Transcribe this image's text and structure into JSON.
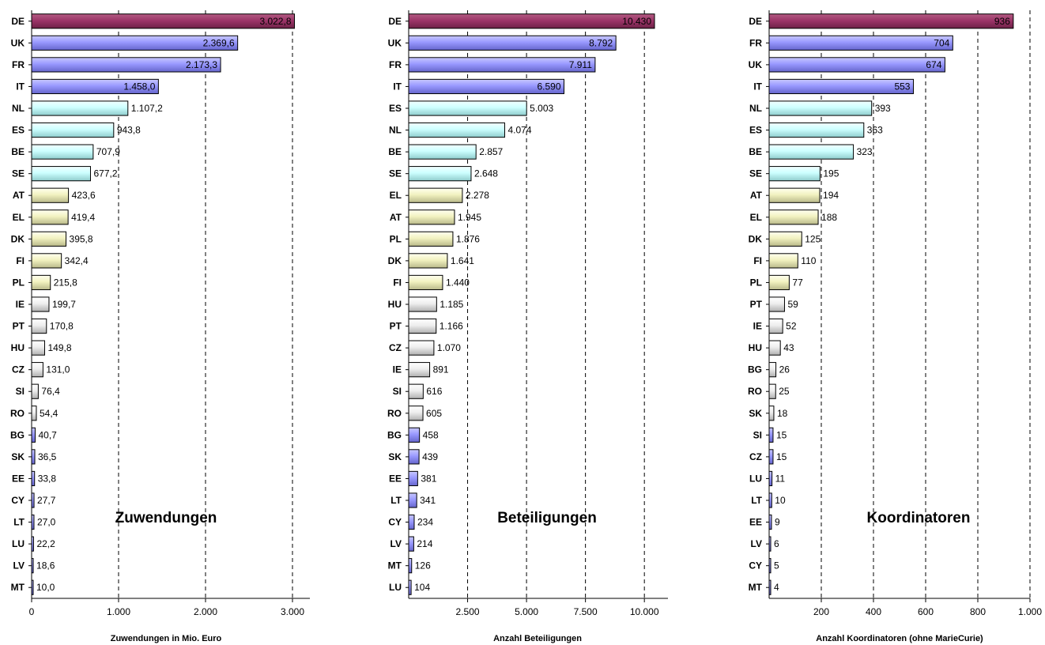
{
  "colors": {
    "top": "#993366",
    "major": "#9999ff",
    "mid": "#ccffff",
    "lower": "#ffffcc",
    "small": "#ffffff",
    "minor": "#9999ff",
    "edge": "#000000"
  },
  "chart_data": [
    {
      "type": "bar",
      "orientation": "horizontal",
      "overlay_label": "Zuwendungen",
      "xlabel": "Zuwendungen in Mio. Euro",
      "xlim": [
        0,
        3200
      ],
      "xticks": [
        0,
        1000,
        2000,
        3000
      ],
      "xtick_labels": [
        "0",
        "1.000",
        "2.000",
        "3.000"
      ],
      "grid": "vertical dashed",
      "categories": [
        "DE",
        "UK",
        "FR",
        "IT",
        "NL",
        "ES",
        "BE",
        "SE",
        "AT",
        "EL",
        "DK",
        "FI",
        "PL",
        "IE",
        "PT",
        "HU",
        "CZ",
        "SI",
        "RO",
        "BG",
        "SK",
        "EE",
        "CY",
        "LT",
        "LU",
        "LV",
        "MT"
      ],
      "values": [
        3022.8,
        2369.6,
        2173.3,
        1458.0,
        1107.2,
        943.8,
        707.9,
        677.2,
        423.6,
        419.4,
        395.8,
        342.4,
        215.8,
        199.7,
        170.8,
        149.8,
        131.0,
        76.4,
        54.4,
        40.7,
        36.5,
        33.8,
        27.7,
        27.0,
        22.2,
        18.6,
        10.0
      ],
      "value_labels": [
        "3.022,8",
        "2.369,6",
        "2.173,3",
        "1.458,0",
        "1.107,2",
        "943,8",
        "707,9",
        "677,2",
        "423,6",
        "419,4",
        "395,8",
        "342,4",
        "215,8",
        "199,7",
        "170,8",
        "149,8",
        "131,0",
        "76,4",
        "54,4",
        "40,7",
        "36,5",
        "33,8",
        "27,7",
        "27,0",
        "22,2",
        "18,6",
        "10,0"
      ],
      "groups": [
        "top",
        "major",
        "major",
        "major",
        "mid",
        "mid",
        "mid",
        "mid",
        "lower",
        "lower",
        "lower",
        "lower",
        "lower",
        "small",
        "small",
        "small",
        "small",
        "small",
        "small",
        "minor",
        "minor",
        "minor",
        "minor",
        "minor",
        "minor",
        "minor",
        "minor"
      ]
    },
    {
      "type": "bar",
      "orientation": "horizontal",
      "overlay_label": "Beteiligungen",
      "xlabel": "Anzahl Beteiligungen",
      "xlim": [
        0,
        11000
      ],
      "xticks": [
        2500,
        5000,
        7500,
        10000
      ],
      "xtick_labels": [
        "2.500",
        "5.000",
        "7.500",
        "10.000"
      ],
      "grid": "vertical dashed",
      "categories": [
        "DE",
        "UK",
        "FR",
        "IT",
        "ES",
        "NL",
        "BE",
        "SE",
        "EL",
        "AT",
        "PL",
        "DK",
        "FI",
        "HU",
        "PT",
        "CZ",
        "IE",
        "SI",
        "RO",
        "BG",
        "SK",
        "EE",
        "LT",
        "CY",
        "LV",
        "MT",
        "LU"
      ],
      "values": [
        10430,
        8792,
        7911,
        6590,
        5003,
        4074,
        2857,
        2648,
        2278,
        1945,
        1876,
        1641,
        1440,
        1185,
        1166,
        1070,
        891,
        616,
        605,
        458,
        439,
        381,
        341,
        234,
        214,
        126,
        104
      ],
      "value_labels": [
        "10.430",
        "8.792",
        "7.911",
        "6.590",
        "5.003",
        "4.074",
        "2.857",
        "2.648",
        "2.278",
        "1.945",
        "1.876",
        "1.641",
        "1.440",
        "1.185",
        "1.166",
        "1.070",
        "891",
        "616",
        "605",
        "458",
        "439",
        "381",
        "341",
        "234",
        "214",
        "126",
        "104"
      ],
      "groups": [
        "top",
        "major",
        "major",
        "major",
        "mid",
        "mid",
        "mid",
        "mid",
        "lower",
        "lower",
        "lower",
        "lower",
        "lower",
        "small",
        "small",
        "small",
        "small",
        "small",
        "small",
        "minor",
        "minor",
        "minor",
        "minor",
        "minor",
        "minor",
        "minor",
        "minor"
      ]
    },
    {
      "type": "bar",
      "orientation": "horizontal",
      "overlay_label": "Koordinatoren",
      "xlabel": "Anzahl Koordinatoren (ohne MarieCurie)",
      "xlim": [
        0,
        1000
      ],
      "xticks": [
        200,
        400,
        600,
        800,
        1000
      ],
      "xtick_labels": [
        "200",
        "400",
        "600",
        "800",
        "1.000"
      ],
      "grid": "vertical dashed",
      "categories": [
        "DE",
        "FR",
        "UK",
        "IT",
        "NL",
        "ES",
        "BE",
        "SE",
        "AT",
        "EL",
        "DK",
        "FI",
        "PL",
        "PT",
        "IE",
        "HU",
        "BG",
        "RO",
        "SK",
        "SI",
        "CZ",
        "LU",
        "LT",
        "EE",
        "LV",
        "CY",
        "MT"
      ],
      "values": [
        936,
        704,
        674,
        553,
        393,
        363,
        323,
        195,
        194,
        188,
        125,
        110,
        77,
        59,
        52,
        43,
        26,
        25,
        18,
        15,
        15,
        11,
        10,
        9,
        6,
        5,
        4
      ],
      "value_labels": [
        "936",
        "704",
        "674",
        "553",
        "393",
        "363",
        "323",
        "195",
        "194",
        "188",
        "125",
        "110",
        "77",
        "59",
        "52",
        "43",
        "26",
        "25",
        "18",
        "15",
        "15",
        "11",
        "10",
        "9",
        "6",
        "5",
        "4"
      ],
      "groups": [
        "top",
        "major",
        "major",
        "major",
        "mid",
        "mid",
        "mid",
        "mid",
        "lower",
        "lower",
        "lower",
        "lower",
        "lower",
        "small",
        "small",
        "small",
        "small",
        "small",
        "small",
        "minor",
        "minor",
        "minor",
        "minor",
        "minor",
        "minor",
        "minor",
        "minor"
      ]
    }
  ]
}
